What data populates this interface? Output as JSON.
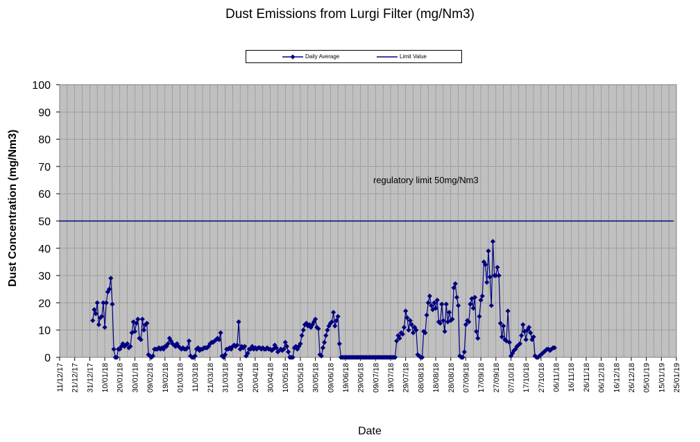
{
  "chart_data": {
    "type": "line",
    "title": "Dust Emissions from Lurgi Filter (mg/Nm3)",
    "xlabel": "Date",
    "ylabel": "Dust Concentration (mg/Nm3)",
    "ylim": [
      0,
      100
    ],
    "yticks": [
      0,
      10,
      20,
      30,
      40,
      50,
      60,
      70,
      80,
      90,
      100
    ],
    "xlim": [
      "2017-12-11",
      "2019-01-25"
    ],
    "xtick_labels": [
      "11/12/17",
      "21/12/17",
      "31/12/17",
      "10/01/18",
      "20/01/18",
      "30/01/18",
      "09/02/18",
      "19/02/18",
      "01/03/18",
      "11/03/18",
      "21/03/18",
      "31/03/18",
      "10/04/18",
      "20/04/18",
      "30/04/18",
      "10/05/18",
      "20/05/18",
      "30/05/18",
      "09/06/18",
      "19/06/18",
      "29/06/18",
      "09/07/18",
      "19/07/18",
      "29/07/18",
      "08/08/18",
      "18/08/18",
      "28/08/18",
      "07/09/18",
      "17/09/18",
      "27/09/18",
      "07/10/18",
      "17/10/18",
      "27/10/18",
      "06/11/18",
      "16/11/18",
      "26/11/18",
      "06/12/18",
      "16/12/18",
      "26/12/18",
      "05/01/19",
      "15/01/19",
      "25/01/19"
    ],
    "grid": true,
    "legend_position": "top",
    "annotation": "regulatory limit 50mg/Nm3",
    "series": [
      {
        "name": "Daily Average",
        "color": "#000080",
        "marker": "diamond",
        "start_date": "2018-01-02",
        "values": [
          13.5,
          17.5,
          16,
          20,
          12,
          14.5,
          15,
          20,
          11,
          20,
          24,
          25,
          29,
          19.5,
          3,
          0,
          0,
          3,
          3,
          4,
          5,
          4,
          4.5,
          5,
          3.5,
          4,
          9,
          13,
          9.5,
          12.5,
          14,
          7,
          6.5,
          14,
          10,
          12,
          12.5,
          1,
          0.5,
          0,
          0.5,
          3,
          3,
          3,
          3.5,
          3,
          3.5,
          3,
          4,
          4,
          5,
          7,
          6,
          5,
          4.5,
          4,
          5,
          4,
          3.5,
          3,
          3.5,
          3,
          3,
          3.5,
          6,
          0.5,
          0,
          0,
          0.5,
          3,
          3.5,
          2.5,
          3,
          3,
          3.5,
          3.5,
          3.5,
          4,
          5,
          5.5,
          5.5,
          6,
          6.5,
          7,
          6.5,
          9,
          0.5,
          0,
          1,
          3,
          3,
          3.5,
          3,
          4,
          4.5,
          4,
          4.5,
          13,
          3,
          4,
          3.5,
          4,
          0.5,
          1.5,
          3,
          3,
          4,
          3,
          3.5,
          3,
          3.5,
          3.5,
          3,
          3.5,
          3,
          3,
          3.5,
          3,
          3,
          2.5,
          3,
          4.5,
          3.5,
          2,
          2.5,
          3,
          2.5,
          3,
          5.5,
          4,
          2,
          0,
          0,
          0,
          3.5,
          4,
          3,
          4,
          5,
          8,
          10,
          12,
          12.5,
          11.5,
          12,
          11,
          12,
          13,
          14,
          11,
          10.5,
          1,
          0.5,
          3.5,
          5.5,
          8,
          10,
          11.5,
          12.5,
          13,
          16.5,
          11.5,
          13.5,
          15,
          5,
          0,
          0,
          0,
          0,
          0,
          0,
          0,
          0,
          0,
          0,
          0,
          0,
          0,
          0,
          0,
          0,
          0,
          0,
          0,
          0,
          0,
          0,
          0,
          0,
          0,
          0,
          0,
          0,
          0,
          0,
          0,
          0,
          0,
          0,
          0,
          0,
          0,
          6,
          8,
          7,
          9,
          8.5,
          11,
          17,
          14.5,
          10,
          13.5,
          12,
          9,
          11,
          10,
          1,
          0.5,
          0,
          0,
          9.5,
          9,
          15.5,
          20,
          22.5,
          19,
          17.5,
          20,
          18,
          21,
          13,
          12.5,
          19.5,
          13.5,
          9.5,
          19.5,
          13,
          16.5,
          13.5,
          14,
          25.5,
          27,
          22,
          19,
          0.5,
          0,
          0,
          2,
          12,
          13.5,
          13,
          19.5,
          21.5,
          18,
          22,
          9.5,
          7,
          15,
          21,
          22.5,
          35,
          34,
          27.5,
          39,
          29.5,
          19,
          42.5,
          30,
          30,
          33,
          30,
          12.5,
          7.5,
          11.5,
          6.5,
          6,
          17,
          5.5,
          0.5,
          1.5,
          2.5,
          3,
          4,
          4.5,
          5,
          8,
          12,
          9.5,
          6.5,
          10,
          11,
          9,
          6.5,
          7.5,
          0.5,
          0,
          0,
          0.5,
          1,
          1.5,
          2,
          2.5,
          3,
          3,
          2.5,
          3,
          3.5,
          3.5
        ]
      },
      {
        "name": "Limit Value",
        "color": "#000080",
        "marker": "none",
        "x": [
          "2017-12-11",
          "2019-01-23"
        ],
        "values": [
          50,
          50
        ]
      }
    ]
  }
}
